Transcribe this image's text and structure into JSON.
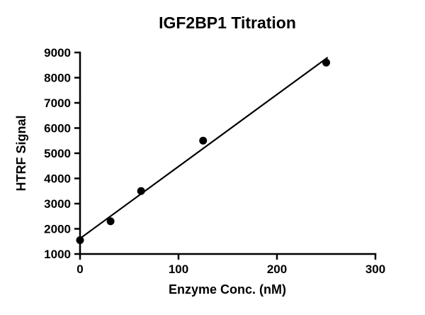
{
  "chart_data": {
    "type": "scatter",
    "title": "IGF2BP1 Titration",
    "xlabel": "Enzyme Conc. (nM)",
    "ylabel": "HTRF Signal",
    "xlim": [
      0,
      300
    ],
    "ylim": [
      1000,
      9000
    ],
    "x_ticks": [
      0,
      100,
      200,
      300
    ],
    "y_ticks": [
      1000,
      2000,
      3000,
      4000,
      5000,
      6000,
      7000,
      8000,
      9000
    ],
    "grid": false,
    "legend": null,
    "marker_color": "#000000",
    "line_color": "#000000",
    "points": [
      {
        "x": 0,
        "y": 1550
      },
      {
        "x": 31,
        "y": 2300
      },
      {
        "x": 62,
        "y": 3500
      },
      {
        "x": 125,
        "y": 5500
      },
      {
        "x": 250,
        "y": 8600
      }
    ],
    "fit_line": {
      "x1": 0,
      "y1": 1615,
      "x2": 251,
      "y2": 8790
    }
  }
}
